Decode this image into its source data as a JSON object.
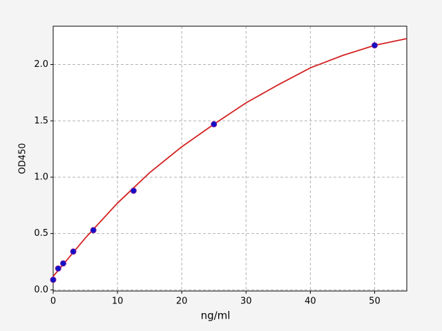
{
  "chart_data": {
    "type": "scatter",
    "xlabel": "ng/ml",
    "ylabel": "OD450",
    "points": {
      "x": [
        0,
        0.78,
        1.56,
        3.125,
        6.25,
        12.5,
        25,
        50
      ],
      "values": [
        0.09,
        0.19,
        0.235,
        0.34,
        0.53,
        0.88,
        1.47,
        2.17
      ],
      "color": "#1010c8",
      "edge": "#7a1a9a"
    },
    "fit": {
      "x": [
        0,
        5,
        10,
        15,
        20,
        25,
        30,
        35,
        40,
        45,
        50,
        55
      ],
      "values": [
        0.12,
        0.46,
        0.77,
        1.04,
        1.27,
        1.47,
        1.66,
        1.82,
        1.97,
        2.08,
        2.17,
        2.23
      ],
      "color": "#d42020"
    },
    "xlim": [
      0,
      55
    ],
    "ylim": [
      -0.01,
      2.34
    ],
    "xticks": [
      0,
      10,
      20,
      30,
      40,
      50
    ],
    "yticks": [
      {
        "value": 0,
        "label": "0.0"
      },
      0.5,
      {
        "value": 1,
        "label": "1.0"
      },
      1.5,
      {
        "value": 2,
        "label": "2.0"
      }
    ],
    "grid": true
  }
}
